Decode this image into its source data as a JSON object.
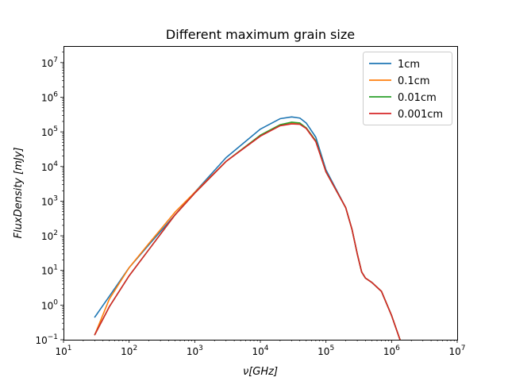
{
  "chart_data": {
    "type": "line",
    "title": "Different maximum grain size",
    "xlabel": "ν[GHz]",
    "ylabel": "FluxDensity [mJy]",
    "xscale": "log",
    "yscale": "log",
    "xlim": [
      10,
      10000000
    ],
    "ylim": [
      0.1,
      30000000
    ],
    "grid": false,
    "legend_position": "top-right",
    "x_tick_labels": [
      {
        "value": 10,
        "base": "10",
        "exp": "1"
      },
      {
        "value": 100,
        "base": "10",
        "exp": "2"
      },
      {
        "value": 1000,
        "base": "10",
        "exp": "3"
      },
      {
        "value": 10000,
        "base": "10",
        "exp": "4"
      },
      {
        "value": 100000,
        "base": "10",
        "exp": "5"
      },
      {
        "value": 1000000,
        "base": "10",
        "exp": "6"
      },
      {
        "value": 10000000,
        "base": "10",
        "exp": "7"
      }
    ],
    "y_tick_labels": [
      {
        "value": 0.1,
        "base": "10",
        "exp": "−1"
      },
      {
        "value": 1,
        "base": "10",
        "exp": "0"
      },
      {
        "value": 10,
        "base": "10",
        "exp": "1"
      },
      {
        "value": 100,
        "base": "10",
        "exp": "2"
      },
      {
        "value": 1000,
        "base": "10",
        "exp": "3"
      },
      {
        "value": 10000,
        "base": "10",
        "exp": "4"
      },
      {
        "value": 100000,
        "base": "10",
        "exp": "5"
      },
      {
        "value": 1000000,
        "base": "10",
        "exp": "6"
      },
      {
        "value": 10000000,
        "base": "10",
        "exp": "7"
      }
    ],
    "series": [
      {
        "name": "1cm",
        "color": "#1f77b4",
        "x": [
          30,
          50,
          100,
          200,
          500,
          1000,
          3000,
          10000,
          20000,
          30000,
          40000,
          50000,
          70000,
          100000,
          200000,
          250000,
          300000,
          350000,
          400000,
          500000,
          700000,
          1000000,
          1400000
        ],
        "y": [
          0.45,
          1.8,
          12,
          55,
          400,
          1800,
          18000,
          120000,
          240000,
          270000,
          250000,
          180000,
          70000,
          8000,
          650,
          150,
          30,
          9,
          6,
          4.5,
          2.5,
          0.5,
          0.08
        ]
      },
      {
        "name": "0.1cm",
        "color": "#ff7f0e",
        "x": [
          30,
          50,
          100,
          200,
          500,
          1000,
          3000,
          10000,
          20000,
          30000,
          40000,
          50000,
          70000,
          100000,
          200000,
          250000,
          300000,
          350000,
          400000,
          500000,
          700000,
          1000000,
          1400000
        ],
        "y": [
          0.14,
          1.5,
          12,
          60,
          480,
          1800,
          14000,
          80000,
          160000,
          185000,
          175000,
          130000,
          55000,
          7000,
          650,
          150,
          30,
          9,
          6,
          4.5,
          2.5,
          0.5,
          0.08
        ]
      },
      {
        "name": "0.01cm",
        "color": "#2ca02c",
        "x": [
          30,
          50,
          100,
          200,
          500,
          1000,
          3000,
          10000,
          20000,
          30000,
          40000,
          50000,
          70000,
          100000,
          200000,
          250000,
          300000,
          350000,
          400000,
          500000,
          700000,
          1000000,
          1400000
        ],
        "y": [
          0.14,
          0.9,
          7,
          40,
          400,
          1700,
          14000,
          80000,
          160000,
          190000,
          180000,
          130000,
          55000,
          7000,
          650,
          150,
          30,
          9,
          6,
          4.5,
          2.5,
          0.5,
          0.08
        ]
      },
      {
        "name": "0.001cm",
        "color": "#d62728",
        "x": [
          30,
          50,
          100,
          200,
          500,
          1000,
          3000,
          10000,
          20000,
          30000,
          40000,
          50000,
          70000,
          100000,
          200000,
          250000,
          300000,
          350000,
          400000,
          500000,
          700000,
          1000000,
          1400000
        ],
        "y": [
          0.14,
          0.9,
          7,
          40,
          400,
          1700,
          14000,
          75000,
          150000,
          170000,
          165000,
          125000,
          52000,
          7000,
          650,
          150,
          30,
          9,
          6,
          4.5,
          2.5,
          0.5,
          0.08
        ]
      }
    ]
  }
}
